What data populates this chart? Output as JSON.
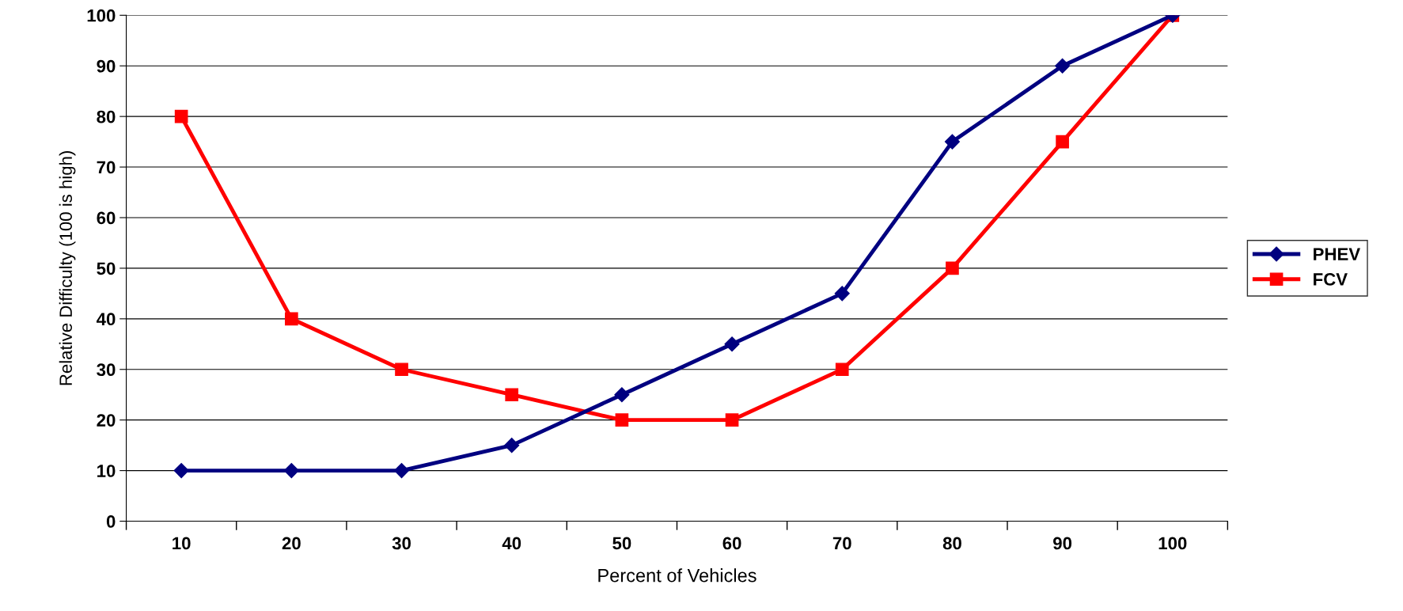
{
  "chart_data": {
    "type": "line",
    "xlabel": "Percent of Vehicles",
    "ylabel": "Relative Difficulty (100 is high)",
    "categories": [
      "10",
      "20",
      "30",
      "40",
      "50",
      "60",
      "70",
      "80",
      "90",
      "100"
    ],
    "series": [
      {
        "name": "PHEV",
        "color": "#000080",
        "marker": "diamond",
        "values": [
          10,
          10,
          10,
          15,
          25,
          35,
          45,
          75,
          90,
          100
        ]
      },
      {
        "name": "FCV",
        "color": "#ff0000",
        "marker": "square",
        "values": [
          80,
          40,
          30,
          25,
          20,
          20,
          30,
          50,
          75,
          100
        ]
      }
    ],
    "ylim": [
      0,
      100
    ],
    "yticks": [
      0,
      10,
      20,
      30,
      40,
      50,
      60,
      70,
      80,
      90,
      100
    ],
    "grid": "y",
    "legend": "right"
  }
}
